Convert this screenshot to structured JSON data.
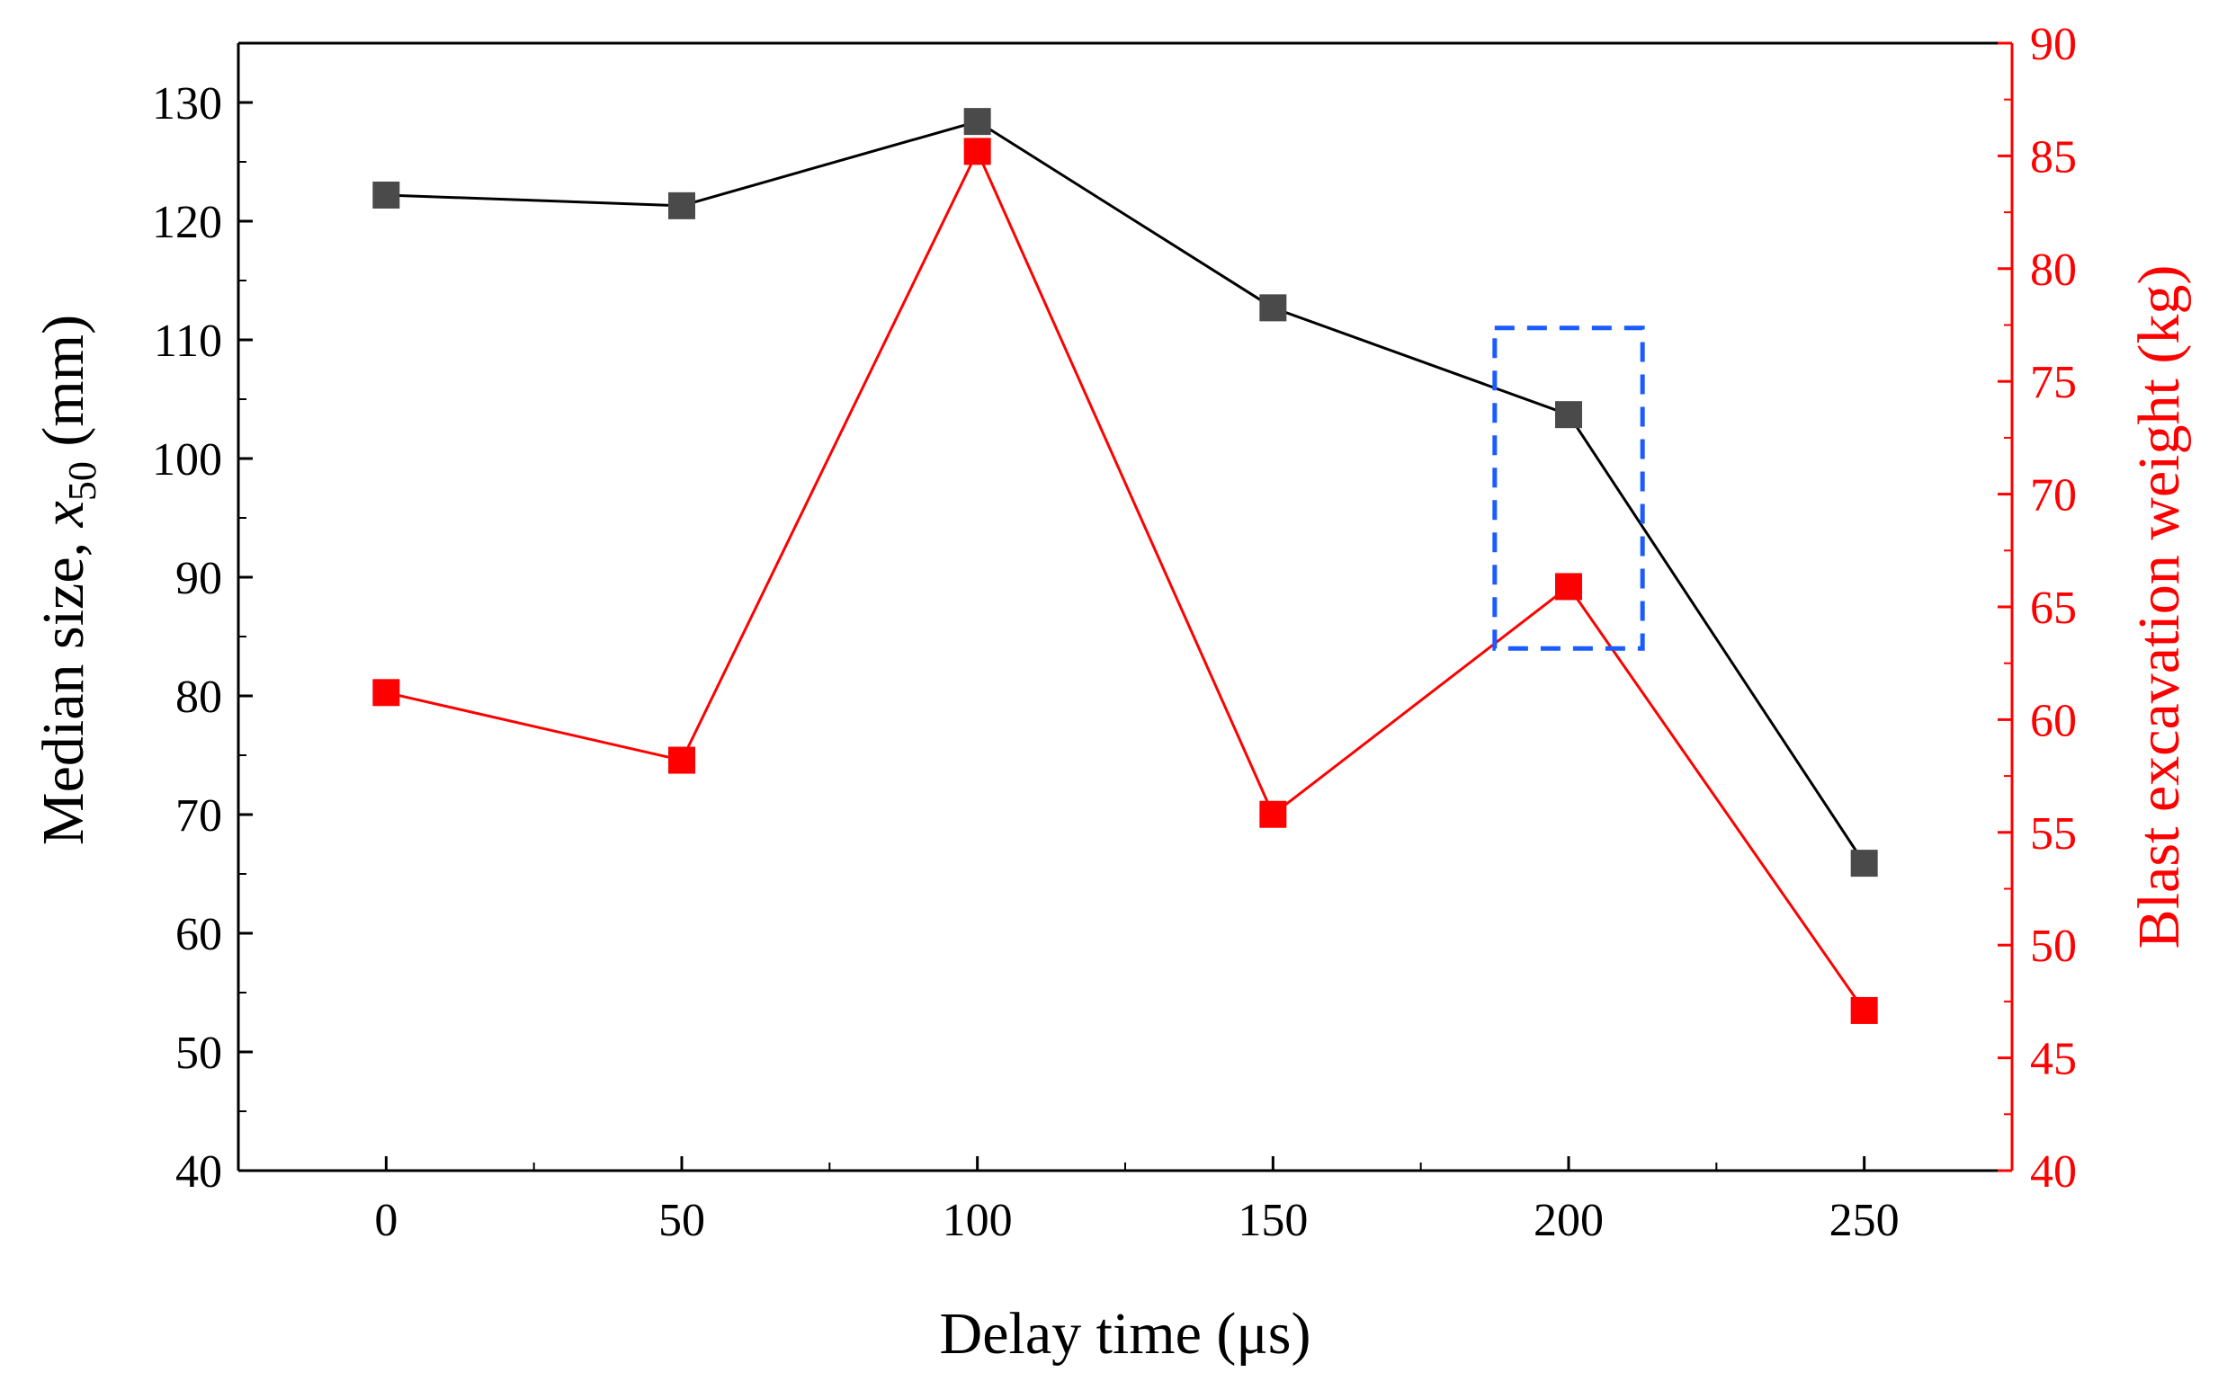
{
  "chart_data": {
    "type": "line",
    "xlabel": "Delay time (μs)",
    "ylabel": {
      "prefix": "Median size, ",
      "var": "x",
      "subscript": "50",
      "suffix": " (mm)"
    },
    "y2label": "Blast excavation weight (kg)",
    "x": [
      0,
      50,
      100,
      150,
      200,
      250
    ],
    "xlim": [
      -25,
      275
    ],
    "xticks": [
      "0",
      "50",
      "100",
      "150",
      "200",
      "250"
    ],
    "ylim": [
      40,
      135
    ],
    "yticks": [
      "40",
      "50",
      "60",
      "70",
      "80",
      "90",
      "100",
      "110",
      "120",
      "130"
    ],
    "y2lim": [
      40,
      90
    ],
    "y2ticks": [
      "40",
      "45",
      "50",
      "55",
      "60",
      "65",
      "70",
      "75",
      "80",
      "85",
      "90"
    ],
    "series": [
      {
        "name": "Median size x50",
        "axis": "left",
        "color": "#000000",
        "marker_color": "#4a4a4a",
        "values": [
          122.2,
          121.3,
          128.4,
          112.7,
          103.7,
          65.9
        ]
      },
      {
        "name": "Blast excavation weight",
        "axis": "right",
        "color": "#ff0000",
        "marker_color": "#ff0000",
        "values": [
          61.2,
          58.2,
          85.2,
          55.8,
          65.9,
          47.1
        ]
      }
    ],
    "annotation": {
      "type": "dashed-rectangle",
      "color": "#1a5cff",
      "x_range": [
        187.5,
        212.5
      ],
      "y_range": [
        84,
        111
      ],
      "note": "highlights delay 200"
    },
    "grid": false,
    "legend": "none",
    "colors": {
      "left_axis": "#000000",
      "right_axis": "#ff0000",
      "highlight": "#1a5cff"
    }
  }
}
